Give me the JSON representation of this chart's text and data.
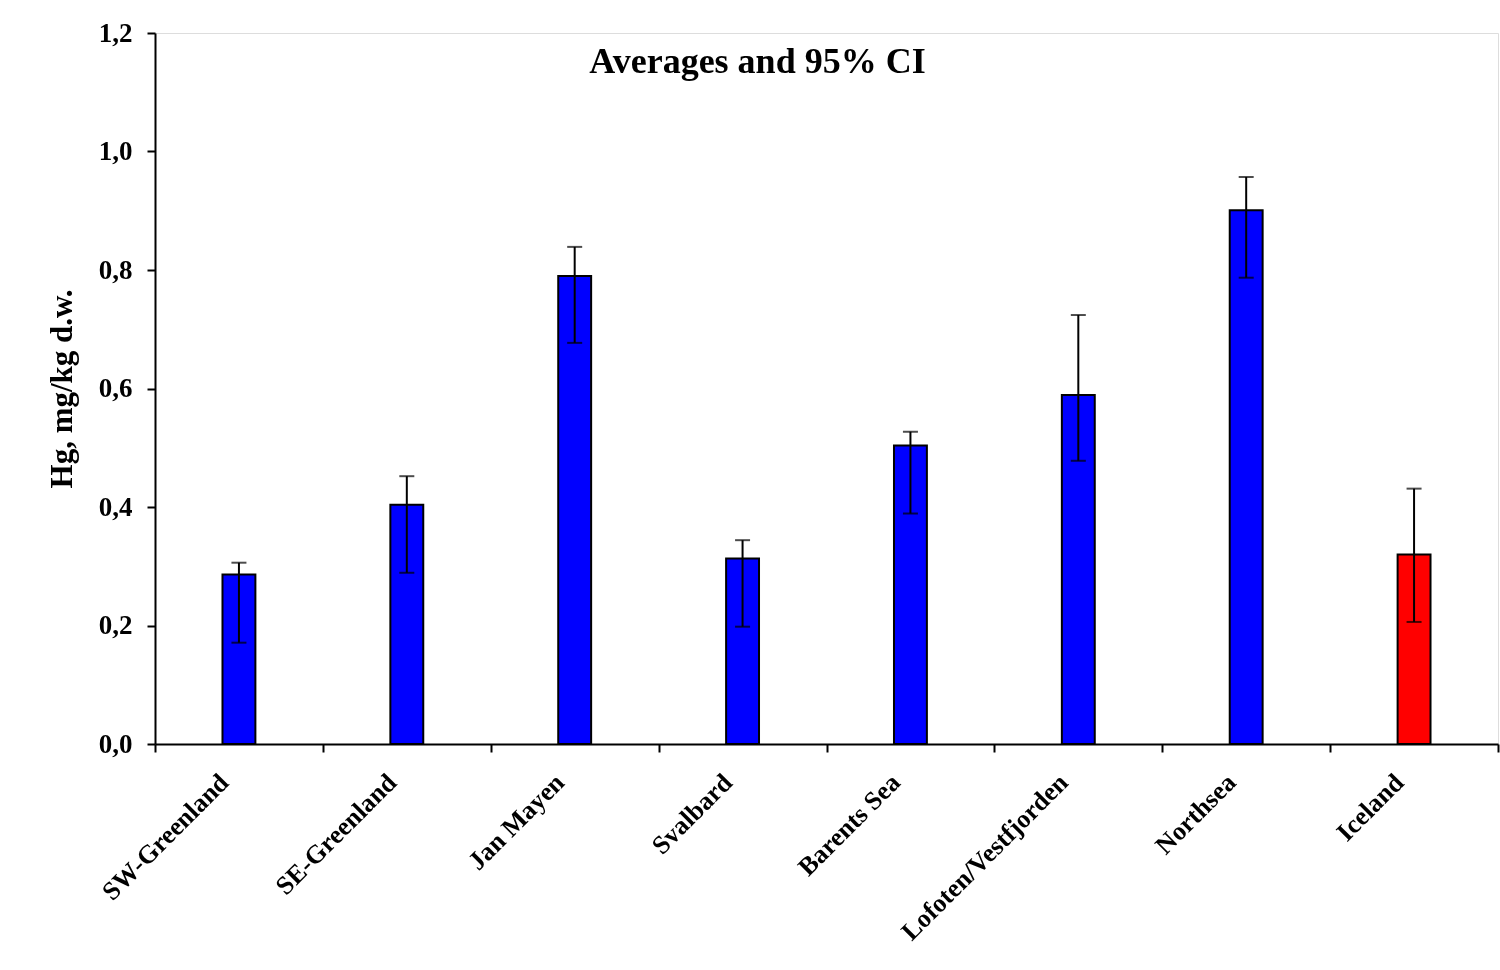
{
  "chart_data": {
    "type": "bar",
    "title": "Averages and 95% CI",
    "ylabel": "Hg, mg/kg d.w.",
    "categories": [
      "SW-Greenland",
      "SE-Greenland",
      "Jan Mayen",
      "Svalbard",
      "Barents Sea",
      "Lofoten/Vestfjorden",
      "Northsea",
      "Iceland"
    ],
    "values": [
      0.286,
      0.404,
      0.79,
      0.313,
      0.504,
      0.589,
      0.901,
      0.32
    ],
    "colors": [
      "#0000ff",
      "#0000ff",
      "#0000ff",
      "#0000ff",
      "#0000ff",
      "#0000ff",
      "#0000ff",
      "#ff0000"
    ],
    "errors": [
      [
        0.171,
        0.306
      ],
      [
        0.289,
        0.452
      ],
      [
        0.677,
        0.839
      ],
      [
        0.198,
        0.344
      ],
      [
        0.389,
        0.527
      ],
      [
        0.478,
        0.724
      ],
      [
        0.787,
        0.957
      ],
      [
        0.206,
        0.431
      ]
    ],
    "ylim": [
      0,
      1.2
    ],
    "yticks": [
      {
        "value": 0,
        "label": "0,0"
      },
      {
        "value": 0.2,
        "label": "0,2"
      },
      {
        "value": 0.4,
        "label": "0,4"
      },
      {
        "value": 0.6,
        "label": "0,6"
      },
      {
        "value": 0.8,
        "label": "0,8"
      },
      {
        "value": 1.0,
        "label": "1,0"
      },
      {
        "value": 1.2,
        "label": "1,2"
      }
    ]
  }
}
